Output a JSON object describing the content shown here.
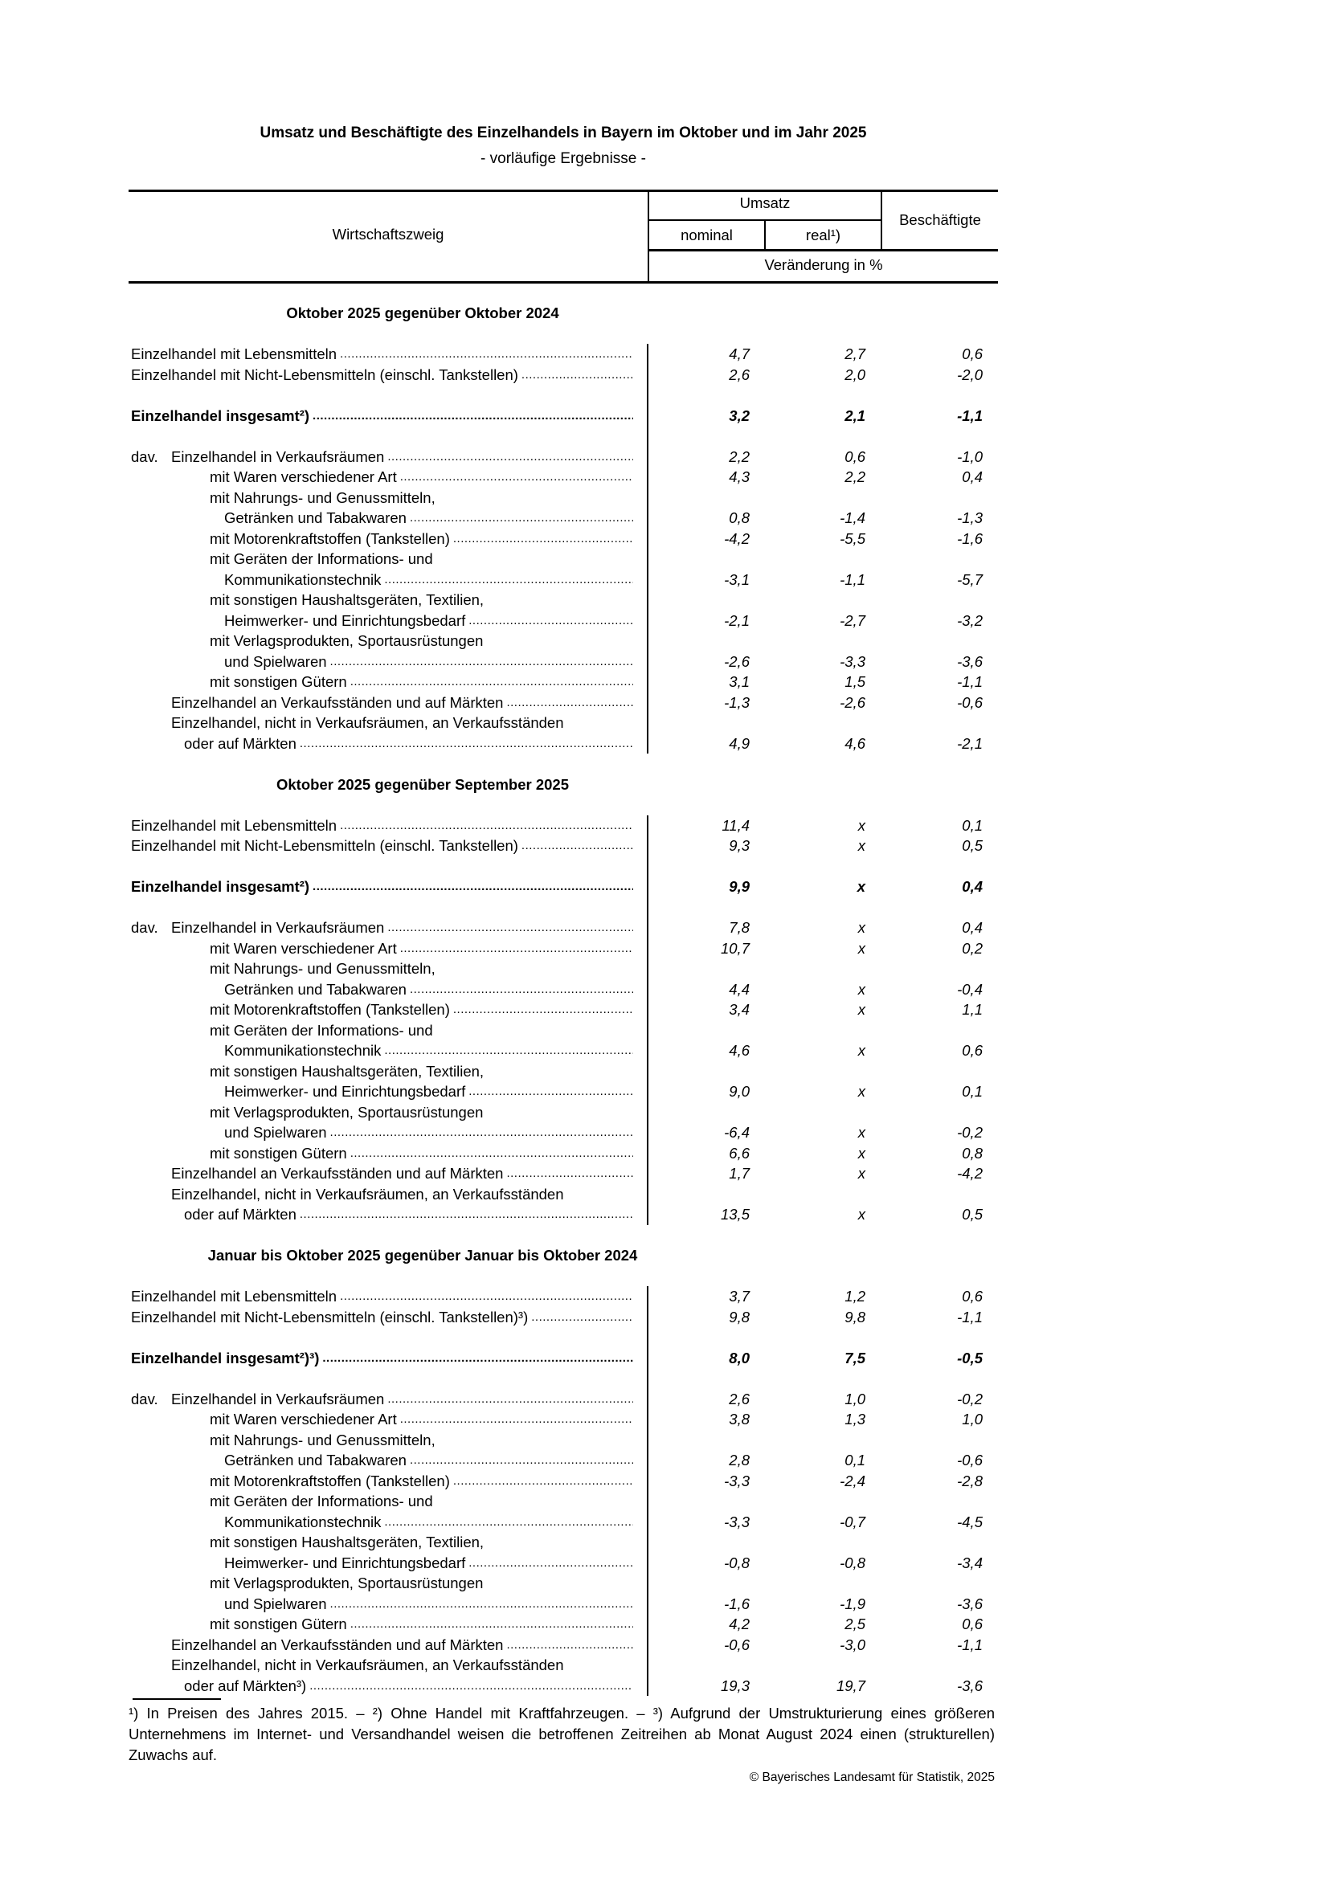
{
  "title": "Umsatz und Beschäftigte des Einzelhandels in Bayern im Oktober und im Jahr 2025",
  "subtitle": "- vorläufige Ergebnisse -",
  "header": {
    "branch": "Wirtschaftszweig",
    "umsatz": "Umsatz",
    "nominal": "nominal",
    "real": "real¹)",
    "employees": "Beschäftigte",
    "unit": "Veränderung in %"
  },
  "sections": [
    {
      "title": "Oktober 2025 gegenüber Oktober 2024",
      "rows": [
        {
          "label": "Einzelhandel mit Lebensmitteln",
          "level": 0,
          "values": [
            "4,7",
            "2,7",
            "0,6"
          ]
        },
        {
          "label": "Einzelhandel mit Nicht-Lebensmitteln (einschl. Tankstellen)",
          "level": 0,
          "values": [
            "2,6",
            "2,0",
            "-2,0"
          ]
        },
        {
          "blank": true
        },
        {
          "label": "Einzelhandel insgesamt²)",
          "level": 0,
          "bold": true,
          "values": [
            "3,2",
            "2,1",
            "-1,1"
          ]
        },
        {
          "blank": true
        },
        {
          "prefix": "dav.",
          "label": "Einzelhandel in Verkaufsräumen",
          "level": 1,
          "values": [
            "2,2",
            "0,6",
            "-1,0"
          ]
        },
        {
          "label": "mit Waren verschiedener Art",
          "level": 2,
          "values": [
            "4,3",
            "2,2",
            "0,4"
          ]
        },
        {
          "label": "mit Nahrungs- und Genussmitteln,",
          "level": 2,
          "label2": "Getränken und Tabakwaren",
          "level2": 3,
          "values": [
            "0,8",
            "-1,4",
            "-1,3"
          ]
        },
        {
          "label": "mit Motorenkraftstoffen (Tankstellen)",
          "level": 2,
          "values": [
            "-4,2",
            "-5,5",
            "-1,6"
          ]
        },
        {
          "label": "mit Geräten der Informations- und",
          "level": 2,
          "label2": "Kommunikationstechnik",
          "level2": 3,
          "values": [
            "-3,1",
            "-1,1",
            "-5,7"
          ]
        },
        {
          "label": "mit sonstigen Haushaltsgeräten, Textilien,",
          "level": 2,
          "label2": "Heimwerker- und Einrichtungsbedarf",
          "level2": 3,
          "values": [
            "-2,1",
            "-2,7",
            "-3,2"
          ]
        },
        {
          "label": "mit Verlagsprodukten, Sportausrüstungen",
          "level": 2,
          "label2": "und Spielwaren",
          "level2": 3,
          "values": [
            "-2,6",
            "-3,3",
            "-3,6"
          ]
        },
        {
          "label": "mit sonstigen Gütern",
          "level": 2,
          "values": [
            "3,1",
            "1,5",
            "-1,1"
          ]
        },
        {
          "label": "Einzelhandel an Verkaufsständen und auf Märkten",
          "level": 1,
          "values": [
            "-1,3",
            "-2,6",
            "-0,6"
          ]
        },
        {
          "label": "Einzelhandel, nicht in Verkaufsräumen, an Verkaufsständen",
          "level": 1,
          "label2": "oder auf Märkten",
          "level2": 4,
          "values": [
            "4,9",
            "4,6",
            "-2,1"
          ]
        }
      ]
    },
    {
      "title": "Oktober 2025 gegenüber September 2025",
      "rows": [
        {
          "label": "Einzelhandel mit Lebensmitteln",
          "level": 0,
          "values": [
            "11,4",
            "x",
            "0,1"
          ]
        },
        {
          "label": "Einzelhandel mit Nicht-Lebensmitteln (einschl. Tankstellen)",
          "level": 0,
          "values": [
            "9,3",
            "x",
            "0,5"
          ]
        },
        {
          "blank": true
        },
        {
          "label": "Einzelhandel insgesamt²)",
          "level": 0,
          "bold": true,
          "values": [
            "9,9",
            "x",
            "0,4"
          ]
        },
        {
          "blank": true
        },
        {
          "prefix": "dav.",
          "label": "Einzelhandel in Verkaufsräumen",
          "level": 1,
          "values": [
            "7,8",
            "x",
            "0,4"
          ]
        },
        {
          "label": "mit Waren verschiedener Art",
          "level": 2,
          "values": [
            "10,7",
            "x",
            "0,2"
          ]
        },
        {
          "label": "mit Nahrungs- und Genussmitteln,",
          "level": 2,
          "label2": "Getränken und Tabakwaren",
          "level2": 3,
          "values": [
            "4,4",
            "x",
            "-0,4"
          ]
        },
        {
          "label": "mit Motorenkraftstoffen (Tankstellen)",
          "level": 2,
          "values": [
            "3,4",
            "x",
            "1,1"
          ]
        },
        {
          "label": "mit Geräten der Informations- und",
          "level": 2,
          "label2": "Kommunikationstechnik",
          "level2": 3,
          "values": [
            "4,6",
            "x",
            "0,6"
          ]
        },
        {
          "label": "mit sonstigen Haushaltsgeräten, Textilien,",
          "level": 2,
          "label2": "Heimwerker- und Einrichtungsbedarf",
          "level2": 3,
          "values": [
            "9,0",
            "x",
            "0,1"
          ]
        },
        {
          "label": "mit Verlagsprodukten, Sportausrüstungen",
          "level": 2,
          "label2": "und Spielwaren",
          "level2": 3,
          "values": [
            "-6,4",
            "x",
            "-0,2"
          ]
        },
        {
          "label": "mit sonstigen Gütern",
          "level": 2,
          "values": [
            "6,6",
            "x",
            "0,8"
          ]
        },
        {
          "label": "Einzelhandel an Verkaufsständen und auf Märkten",
          "level": 1,
          "values": [
            "1,7",
            "x",
            "-4,2"
          ]
        },
        {
          "label": "Einzelhandel, nicht in Verkaufsräumen, an Verkaufsständen",
          "level": 1,
          "label2": "oder auf Märkten",
          "level2": 4,
          "values": [
            "13,5",
            "x",
            "0,5"
          ]
        }
      ]
    },
    {
      "title": "Januar bis Oktober 2025 gegenüber Januar bis Oktober 2024",
      "rows": [
        {
          "label": "Einzelhandel mit Lebensmitteln",
          "level": 0,
          "values": [
            "3,7",
            "1,2",
            "0,6"
          ]
        },
        {
          "label": "Einzelhandel mit Nicht-Lebensmitteln (einschl. Tankstellen)³)",
          "level": 0,
          "values": [
            "9,8",
            "9,8",
            "-1,1"
          ]
        },
        {
          "blank": true
        },
        {
          "label": "Einzelhandel insgesamt²)³)",
          "level": 0,
          "bold": true,
          "values": [
            "8,0",
            "7,5",
            "-0,5"
          ]
        },
        {
          "blank": true
        },
        {
          "prefix": "dav.",
          "label": "Einzelhandel in Verkaufsräumen",
          "level": 1,
          "values": [
            "2,6",
            "1,0",
            "-0,2"
          ]
        },
        {
          "label": "mit Waren verschiedener Art",
          "level": 2,
          "values": [
            "3,8",
            "1,3",
            "1,0"
          ]
        },
        {
          "label": "mit Nahrungs- und Genussmitteln,",
          "level": 2,
          "label2": "Getränken und Tabakwaren",
          "level2": 3,
          "values": [
            "2,8",
            "0,1",
            "-0,6"
          ]
        },
        {
          "label": "mit Motorenkraftstoffen (Tankstellen)",
          "level": 2,
          "values": [
            "-3,3",
            "-2,4",
            "-2,8"
          ]
        },
        {
          "label": "mit Geräten der Informations- und",
          "level": 2,
          "label2": "Kommunikationstechnik",
          "level2": 3,
          "values": [
            "-3,3",
            "-0,7",
            "-4,5"
          ]
        },
        {
          "label": "mit sonstigen Haushaltsgeräten, Textilien,",
          "level": 2,
          "label2": "Heimwerker- und Einrichtungsbedarf",
          "level2": 3,
          "values": [
            "-0,8",
            "-0,8",
            "-3,4"
          ]
        },
        {
          "label": "mit Verlagsprodukten, Sportausrüstungen",
          "level": 2,
          "label2": "und Spielwaren",
          "level2": 3,
          "values": [
            "-1,6",
            "-1,9",
            "-3,6"
          ]
        },
        {
          "label": "mit sonstigen Gütern",
          "level": 2,
          "values": [
            "4,2",
            "2,5",
            "0,6"
          ]
        },
        {
          "label": "Einzelhandel an Verkaufsständen und auf Märkten",
          "level": 1,
          "values": [
            "-0,6",
            "-3,0",
            "-1,1"
          ]
        },
        {
          "label": "Einzelhandel, nicht in Verkaufsräumen, an Verkaufsständen",
          "level": 1,
          "label2": "oder auf Märkten³)",
          "level2": 4,
          "values": [
            "19,3",
            "19,7",
            "-3,6"
          ]
        }
      ]
    }
  ],
  "footnote": "¹) In Preisen des Jahres 2015. – ²) Ohne Handel mit Kraftfahrzeugen. – ³) Aufgrund der Umstrukturierung eines größeren Unternehmens im Internet- und Versandhandel weisen die betroffenen Zeitreihen ab Monat August 2024 einen (strukturellen) Zuwachs auf.",
  "copyright": "© Bayerisches Landesamt für Statistik, 2025"
}
